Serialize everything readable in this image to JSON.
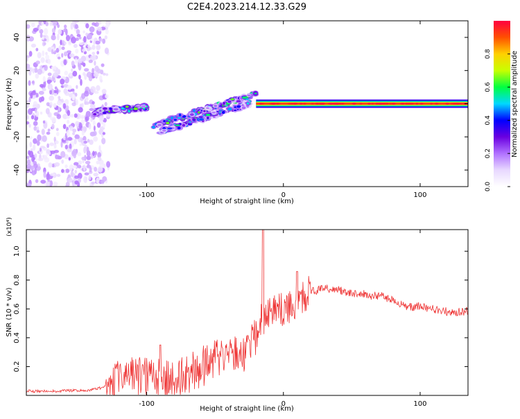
{
  "title": "C2E4.2023.214.12.33.G29",
  "colorbar": {
    "label": "Normalized spectral amplitude",
    "ticks": [
      "0.0",
      "0.2",
      "0.4",
      "0.6",
      "0.8"
    ],
    "tick_values": [
      0.0,
      0.2,
      0.4,
      0.6,
      0.8
    ],
    "colors": [
      "#ffffff",
      "#e8d8ff",
      "#b070ff",
      "#6a00e0",
      "#0000ff",
      "#00d8ff",
      "#00ff40",
      "#c8ff00",
      "#ffd000",
      "#ff5000",
      "#ff0040"
    ]
  },
  "chart_data": [
    {
      "type": "heatmap",
      "title": "C2E4.2023.214.12.33.G29",
      "xlabel": "Height of straight line (km)",
      "ylabel": "Frequency (Hz)",
      "xlim": [
        -188,
        135
      ],
      "ylim": [
        -50,
        50
      ],
      "xticks": [
        -100,
        0,
        100
      ],
      "xtick_labels": [
        "-100",
        "0",
        "100"
      ],
      "yticks": [
        -40,
        -20,
        0,
        20,
        40
      ],
      "ytick_labels": [
        "-40",
        "-20",
        "0",
        "20",
        "40"
      ],
      "zlim": [
        0,
        1
      ],
      "features": [
        {
          "name": "noise",
          "x_range": [
            -188,
            -128
          ],
          "y_range": [
            -50,
            50
          ],
          "amplitude": 0.12
        },
        {
          "name": "branch_a",
          "x": [
            -138,
            -100
          ],
          "y": [
            -5,
            -2
          ],
          "amplitude": 0.45
        },
        {
          "name": "branch_b",
          "x": [
            -95,
            -20
          ],
          "y": [
            -13,
            6
          ],
          "amplitude": 0.45
        },
        {
          "name": "branch_c",
          "x": [
            -90,
            -25
          ],
          "y": [
            -17,
            0
          ],
          "amplitude": 0.4
        },
        {
          "name": "band",
          "x": [
            -20,
            135
          ],
          "y": [
            0,
            0
          ],
          "amplitude": 0.95
        }
      ]
    },
    {
      "type": "line",
      "xlabel": "Height of straight line (km)",
      "ylabel": "SNR (10 * v/v)",
      "multiplier": "(x10⁴)",
      "xlim": [
        -188,
        135
      ],
      "ylim": [
        0,
        1.15
      ],
      "xticks": [
        -100,
        0,
        100
      ],
      "xtick_labels": [
        "-100",
        "0",
        "100"
      ],
      "yticks": [
        0.2,
        0.4,
        0.6,
        0.8,
        1.0
      ],
      "ytick_labels": [
        "0.2",
        "0.4",
        "0.6",
        "0.8",
        "1.0"
      ],
      "series": [
        {
          "color": "#ee3333",
          "x": [
            -188,
            -170,
            -150,
            -140,
            -130,
            -120,
            -110,
            -100,
            -95,
            -90,
            -85,
            -80,
            -75,
            -70,
            -65,
            -60,
            -55,
            -50,
            -45,
            -40,
            -35,
            -30,
            -25,
            -20,
            -17,
            -15,
            -14,
            -12,
            -10,
            -8,
            -5,
            0,
            5,
            8,
            10,
            12,
            15,
            20,
            25,
            30,
            35,
            40,
            45,
            50,
            55,
            60,
            65,
            70,
            75,
            80,
            85,
            90,
            95,
            100,
            105,
            110,
            115,
            120,
            125,
            130,
            135
          ],
          "y": [
            0.03,
            0.03,
            0.035,
            0.04,
            0.06,
            0.1,
            0.13,
            0.12,
            0.12,
            0.14,
            0.1,
            0.08,
            0.12,
            0.16,
            0.17,
            0.2,
            0.22,
            0.24,
            0.25,
            0.26,
            0.3,
            0.28,
            0.34,
            0.4,
            0.5,
            0.55,
            0.52,
            0.55,
            0.58,
            0.6,
            0.58,
            0.6,
            0.62,
            0.65,
            0.64,
            0.67,
            0.7,
            0.72,
            0.73,
            0.74,
            0.74,
            0.73,
            0.72,
            0.71,
            0.71,
            0.7,
            0.69,
            0.69,
            0.68,
            0.66,
            0.64,
            0.62,
            0.61,
            0.62,
            0.61,
            0.6,
            0.59,
            0.58,
            0.58,
            0.58,
            0.59
          ]
        }
      ]
    }
  ]
}
